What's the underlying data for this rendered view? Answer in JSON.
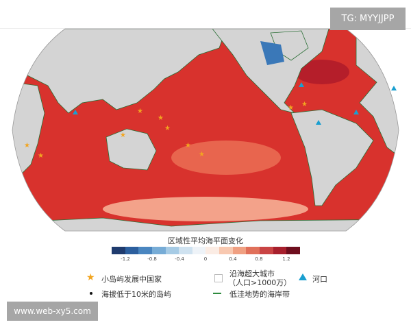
{
  "watermark_top": "TG: MYYJJPP",
  "watermark_bottom": "www.web-xy5.com",
  "legend": {
    "colorbar_title": "区域性平均海平面变化",
    "colorbar_colors": [
      "#1f3b6e",
      "#2c5f9e",
      "#4a86c0",
      "#77acd6",
      "#a6cbe5",
      "#cfe2f0",
      "#eef3f8",
      "#fbece4",
      "#f8c8b0",
      "#f0a082",
      "#e0705a",
      "#c94444",
      "#a7202d",
      "#6e0e1e"
    ],
    "ticks": [
      "-1.2",
      "-0.8",
      "-0.4",
      "0",
      "0.4",
      "0.8",
      "1.2"
    ],
    "items": {
      "sids": "小岛屿发展中国家",
      "megacity_line1": "沿海超大城市",
      "megacity_line2": "（人口>1000万）",
      "delta": "河口",
      "low_islands": "海拔低于10米的岛屿",
      "low_coast": "低洼地势的海岸带"
    },
    "colors": {
      "star": "#f2a520",
      "triangle": "#1a9fd0",
      "green": "#2e8b3e",
      "ocean": "#d8322d",
      "land": "#d4d4d4"
    }
  }
}
